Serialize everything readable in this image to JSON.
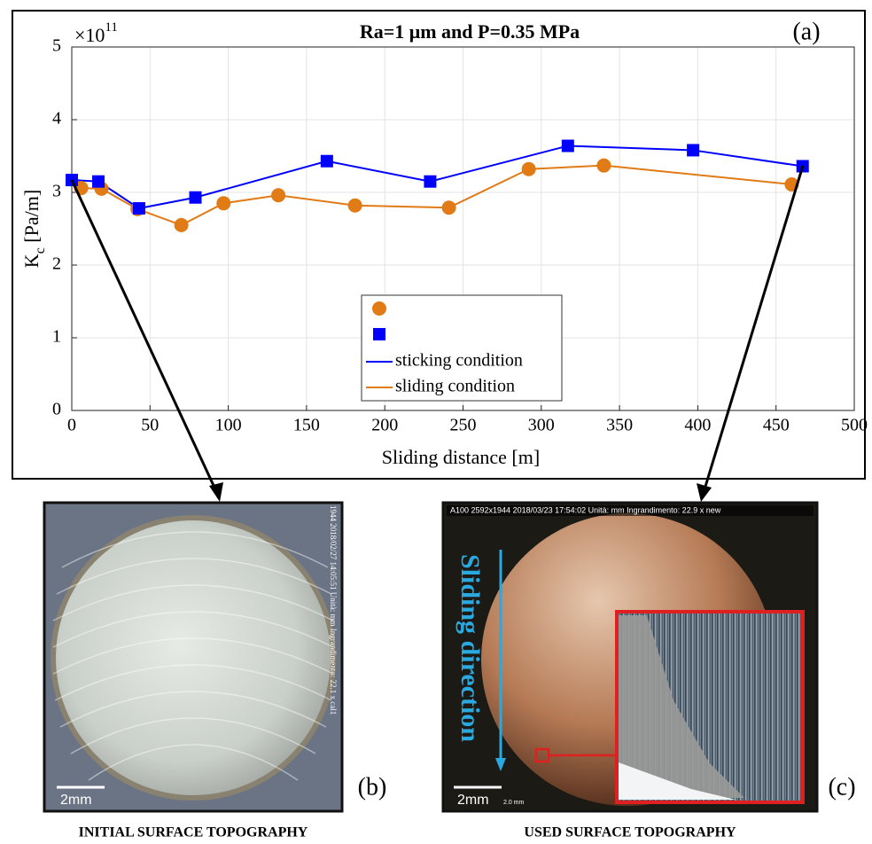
{
  "chart_data": {
    "type": "line",
    "title": "Ra=1 μm and P=0.35 MPa",
    "panel_label": "(a)",
    "xlabel": "Sliding distance [m]",
    "ylabel": [
      "K",
      "c",
      " [Pa/m]"
    ],
    "y_multiplier": [
      "×10",
      "11"
    ],
    "xlim": [
      0,
      500
    ],
    "ylim": [
      0,
      5
    ],
    "xticks": [
      0,
      50,
      100,
      150,
      200,
      250,
      300,
      350,
      400,
      450,
      500
    ],
    "yticks": [
      0,
      1,
      2,
      3,
      4,
      5
    ],
    "grid": true,
    "series": [
      {
        "name": "sticking condition",
        "color": "#0000ff",
        "marker": "square",
        "x": [
          0,
          17,
          43,
          79,
          163,
          229,
          317,
          397,
          467
        ],
        "values": [
          3.17,
          3.15,
          2.78,
          2.93,
          3.43,
          3.15,
          3.64,
          3.58,
          3.36
        ]
      },
      {
        "name": "sliding condition",
        "color": "#e07b16",
        "marker": "circle",
        "x": [
          6,
          19,
          42,
          70,
          97,
          132,
          181,
          241,
          292,
          340,
          460
        ],
        "values": [
          3.06,
          3.05,
          2.77,
          2.55,
          2.85,
          2.96,
          2.82,
          2.79,
          3.32,
          3.37,
          3.11
        ]
      }
    ]
  },
  "panels": {
    "b": {
      "overlay": "1944  2018/02/27 14:05:51  Unità: mm  Ingrandimento:  22.1 x  cal1",
      "scale": "2mm",
      "label": "(b)",
      "caption": "INITIAL SURFACE TOPOGRAPHY"
    },
    "c": {
      "overlay": "A100  2592x1944  2018/03/23 17:54:02  Unità: mm  Ingrandimento:  22.9 x  new",
      "scale": "2mm",
      "scale_small": "2.0 mm",
      "direction": "Sliding direction",
      "label": "(c)",
      "caption": "USED SURFACE TOPOGRAPHY"
    }
  }
}
